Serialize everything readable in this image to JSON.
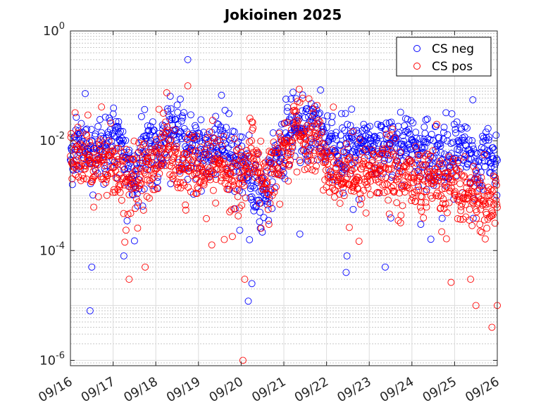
{
  "chart_data": {
    "type": "scatter",
    "title": "Jokioinen 2025",
    "xlabel": "",
    "ylabel": "",
    "yscale": "log",
    "ylim": [
      8e-07,
      1
    ],
    "xlim": [
      "09/16",
      "09/26"
    ],
    "x_ticks": [
      "09/16",
      "09/17",
      "09/18",
      "09/19",
      "09/20",
      "09/21",
      "09/22",
      "09/23",
      "09/24",
      "09/25",
      "09/26"
    ],
    "y_ticks": [
      {
        "value": 1e-06,
        "base": "10",
        "exp": "-6"
      },
      {
        "value": 0.0001,
        "base": "10",
        "exp": "-4"
      },
      {
        "value": 0.01,
        "base": "10",
        "exp": "-2"
      },
      {
        "value": 1,
        "base": "10",
        "exp": "0"
      }
    ],
    "grid": true,
    "legend_position": "top-right",
    "series": [
      {
        "name": "CS neg",
        "color": "#0000ff",
        "marker": "open-circle",
        "trend": [
          [
            "09/16 00:00",
            0.0055
          ],
          [
            "09/16 06:00",
            0.009
          ],
          [
            "09/16 12:00",
            0.006
          ],
          [
            "09/16 18:00",
            0.01
          ],
          [
            "09/17 00:00",
            0.012
          ],
          [
            "09/17 06:00",
            0.006
          ],
          [
            "09/17 12:00",
            0.002
          ],
          [
            "09/17 18:00",
            0.009
          ],
          [
            "09/18 00:00",
            0.006
          ],
          [
            "09/18 06:00",
            0.012
          ],
          [
            "09/18 12:00",
            0.02
          ],
          [
            "09/18 18:00",
            0.006
          ],
          [
            "09/19 00:00",
            0.007
          ],
          [
            "09/19 06:00",
            0.006
          ],
          [
            "09/19 12:00",
            0.008
          ],
          [
            "09/19 18:00",
            0.006
          ],
          [
            "09/20 00:00",
            0.005
          ],
          [
            "09/20 06:00",
            0.002
          ],
          [
            "09/20 12:00",
            0.0008
          ],
          [
            "09/20 18:00",
            0.003
          ],
          [
            "09/21 00:00",
            0.008
          ],
          [
            "09/21 06:00",
            0.018
          ],
          [
            "09/21 12:00",
            0.012
          ],
          [
            "09/21 18:00",
            0.02
          ],
          [
            "09/22 00:00",
            0.009
          ],
          [
            "09/22 06:00",
            0.006
          ],
          [
            "09/22 12:00",
            0.009
          ],
          [
            "09/22 18:00",
            0.007
          ],
          [
            "09/23 00:00",
            0.008
          ],
          [
            "09/23 06:00",
            0.006
          ],
          [
            "09/23 12:00",
            0.009
          ],
          [
            "09/23 18:00",
            0.007
          ],
          [
            "09/24 00:00",
            0.008
          ],
          [
            "09/24 06:00",
            0.006
          ],
          [
            "09/24 12:00",
            0.006
          ],
          [
            "09/24 18:00",
            0.007
          ],
          [
            "09/25 00:00",
            0.005
          ],
          [
            "09/25 06:00",
            0.006
          ],
          [
            "09/25 12:00",
            0.003
          ],
          [
            "09/25 18:00",
            0.006
          ],
          [
            "09/26 00:00",
            0.004
          ]
        ],
        "outliers_low": [
          [
            "09/16 11:00",
            8e-06
          ],
          [
            "09/16 12:00",
            5e-05
          ],
          [
            "09/17 06:00",
            8e-05
          ],
          [
            "09/17 12:00",
            0.00015
          ],
          [
            "09/18 18:00",
            0.3
          ],
          [
            "09/20 04:00",
            1.2e-05
          ],
          [
            "09/20 06:00",
            2.5e-05
          ],
          [
            "09/21 09:00",
            0.0002
          ],
          [
            "09/22 11:00",
            4e-05
          ],
          [
            "09/22 11:30",
            8e-05
          ],
          [
            "09/23 09:00",
            5e-05
          ],
          [
            "09/24 05:00",
            0.0003
          ]
        ]
      },
      {
        "name": "CS pos",
        "color": "#ff0000",
        "marker": "open-circle",
        "trend": [
          [
            "09/16 00:00",
            0.0045
          ],
          [
            "09/16 06:00",
            0.005
          ],
          [
            "09/16 12:00",
            0.003
          ],
          [
            "09/16 18:00",
            0.005
          ],
          [
            "09/17 00:00",
            0.004
          ],
          [
            "09/17 06:00",
            0.003
          ],
          [
            "09/17 12:00",
            0.0015
          ],
          [
            "09/17 18:00",
            0.004
          ],
          [
            "09/18 00:00",
            0.003
          ],
          [
            "09/18 06:00",
            0.009
          ],
          [
            "09/18 12:00",
            0.003
          ],
          [
            "09/18 18:00",
            0.004
          ],
          [
            "09/19 00:00",
            0.003
          ],
          [
            "09/19 06:00",
            0.0025
          ],
          [
            "09/19 12:00",
            0.004
          ],
          [
            "09/19 18:00",
            0.002
          ],
          [
            "09/20 00:00",
            0.002
          ],
          [
            "09/20 06:00",
            0.008
          ],
          [
            "09/20 12:00",
            0.002
          ],
          [
            "09/20 18:00",
            0.003
          ],
          [
            "09/21 00:00",
            0.006
          ],
          [
            "09/21 06:00",
            0.02
          ],
          [
            "09/21 12:00",
            0.01
          ],
          [
            "09/21 18:00",
            0.015
          ],
          [
            "09/22 00:00",
            0.003
          ],
          [
            "09/22 06:00",
            0.002
          ],
          [
            "09/22 12:00",
            0.003
          ],
          [
            "09/22 18:00",
            0.002
          ],
          [
            "09/23 00:00",
            0.0025
          ],
          [
            "09/23 06:00",
            0.003
          ],
          [
            "09/23 12:00",
            0.0025
          ],
          [
            "09/23 18:00",
            0.002
          ],
          [
            "09/24 00:00",
            0.002
          ],
          [
            "09/24 06:00",
            0.0015
          ],
          [
            "09/24 12:00",
            0.002
          ],
          [
            "09/24 18:00",
            0.0012
          ],
          [
            "09/25 00:00",
            0.0015
          ],
          [
            "09/25 06:00",
            0.0008
          ],
          [
            "09/25 12:00",
            0.0012
          ],
          [
            "09/25 18:00",
            0.0006
          ],
          [
            "09/26 00:00",
            0.001
          ]
        ],
        "outliers_low": [
          [
            "09/17 09:00",
            3e-05
          ],
          [
            "09/17 18:00",
            5e-05
          ],
          [
            "09/18 18:00",
            0.1
          ],
          [
            "09/20 01:00",
            1e-06
          ],
          [
            "09/20 02:00",
            3e-05
          ],
          [
            "09/21 09:00",
            0.05
          ],
          [
            "09/25 09:00",
            3e-05
          ],
          [
            "09/25 12:00",
            1e-05
          ],
          [
            "09/25 21:00",
            4e-06
          ],
          [
            "09/26 00:00",
            1e-05
          ]
        ]
      }
    ]
  }
}
